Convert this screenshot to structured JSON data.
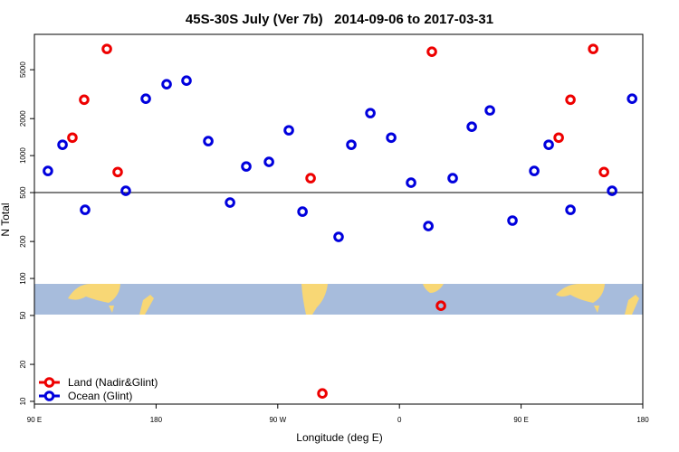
{
  "chart_data": {
    "type": "scatter",
    "title": "45S-30S July (Ver 7b)   2014-09-06 to 2017-03-31",
    "x_label": "Longitude (deg E)",
    "y_label": "N Total",
    "xlim": [
      90,
      540
    ],
    "xticks": [
      {
        "value": 90,
        "label": "90 E"
      },
      180,
      {
        "value": 270,
        "label": "90 W"
      },
      {
        "value": 360,
        "label": "0"
      },
      {
        "value": 450,
        "label": "90 E"
      },
      {
        "value": 540,
        "label": "180"
      }
    ],
    "ylim": [
      9.5,
      9700
    ],
    "log_y": true,
    "yticks": [
      10,
      20,
      50,
      100,
      200,
      500,
      1000,
      2000,
      5000
    ],
    "hline": 500,
    "legend": "lower left",
    "series": [
      {
        "name": "Land (Nadir&Glint)",
        "color": "#ee0000",
        "x": [
          118.1,
          126.8,
          143.6,
          151.6,
          294.3,
          303,
          384,
          390.7,
          477.8,
          486.5,
          503.3,
          511.3
        ],
        "values": [
          1400,
          2850,
          7380,
          735,
          655,
          11.6,
          7010,
          60,
          1400,
          2850,
          7380,
          735
        ]
      },
      {
        "name": "Ocean (Glint)",
        "color": "#0000dd",
        "x": [
          100,
          110.8,
          127.5,
          157.6,
          172.4,
          187.8,
          202.5,
          218.6,
          234.7,
          246.7,
          263.5,
          278.2,
          288.3,
          315,
          324.4,
          338.5,
          353.9,
          368.6,
          381.4,
          399.4,
          413.5,
          426.9,
          443.6,
          459.7,
          470.4,
          486.5,
          517.3,
          532.1
        ],
        "values": [
          750,
          1225,
          362,
          517,
          2905,
          3810,
          4075,
          1312,
          415,
          816,
          889,
          1607,
          350,
          218,
          1225,
          2217,
          1400,
          602,
          267,
          655,
          1718,
          2333,
          296,
          750,
          1225,
          362,
          517,
          2905
        ]
      }
    ]
  }
}
